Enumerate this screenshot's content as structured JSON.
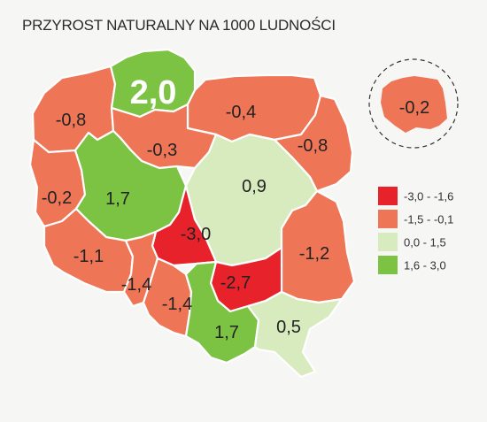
{
  "title": "PRZYROST NATURALNY NA 1000 LUDNOŚCI",
  "colors": {
    "class_1": "#e8222b",
    "class_2": "#ee7657",
    "class_3": "#d8ebbe",
    "class_4": "#7cc243",
    "background": "#f6f6f4"
  },
  "legend": [
    {
      "label": "-3,0 - -1,6",
      "class": "class_1"
    },
    {
      "label": "-1,5 - -0,1",
      "class": "class_2"
    },
    {
      "label": "0,0 -  1,5",
      "class": "class_3"
    },
    {
      "label": "1,6 -  3,0",
      "class": "class_4"
    }
  ],
  "poland_total": "-0,2",
  "regions": [
    {
      "id": "pomorskie",
      "value": "2,0",
      "class": "class_4"
    },
    {
      "id": "zachodniopomorskie",
      "value": "-0,8",
      "class": "class_2"
    },
    {
      "id": "warminsko-mazurskie",
      "value": "-0,4",
      "class": "class_2"
    },
    {
      "id": "kujawsko-pomorskie",
      "value": "-0,3",
      "class": "class_2"
    },
    {
      "id": "podlaskie",
      "value": "-0,8",
      "class": "class_2"
    },
    {
      "id": "lubuskie",
      "value": "-0,2",
      "class": "class_2"
    },
    {
      "id": "wielkopolskie",
      "value": "1,7",
      "class": "class_4"
    },
    {
      "id": "mazowieckie",
      "value": "0,9",
      "class": "class_3"
    },
    {
      "id": "lodzkie",
      "value": "-3,0",
      "class": "class_1"
    },
    {
      "id": "lubelskie",
      "value": "-1,2",
      "class": "class_2"
    },
    {
      "id": "dolnoslaskie",
      "value": "-1,1",
      "class": "class_2"
    },
    {
      "id": "opolskie",
      "value": "-1,4",
      "class": "class_2"
    },
    {
      "id": "slaskie",
      "value": "-1,4",
      "class": "class_2"
    },
    {
      "id": "swietokrzyskie",
      "value": "-2,7",
      "class": "class_1"
    },
    {
      "id": "malopolskie",
      "value": "1,7",
      "class": "class_4"
    },
    {
      "id": "podkarpackie",
      "value": "0,5",
      "class": "class_3"
    }
  ]
}
